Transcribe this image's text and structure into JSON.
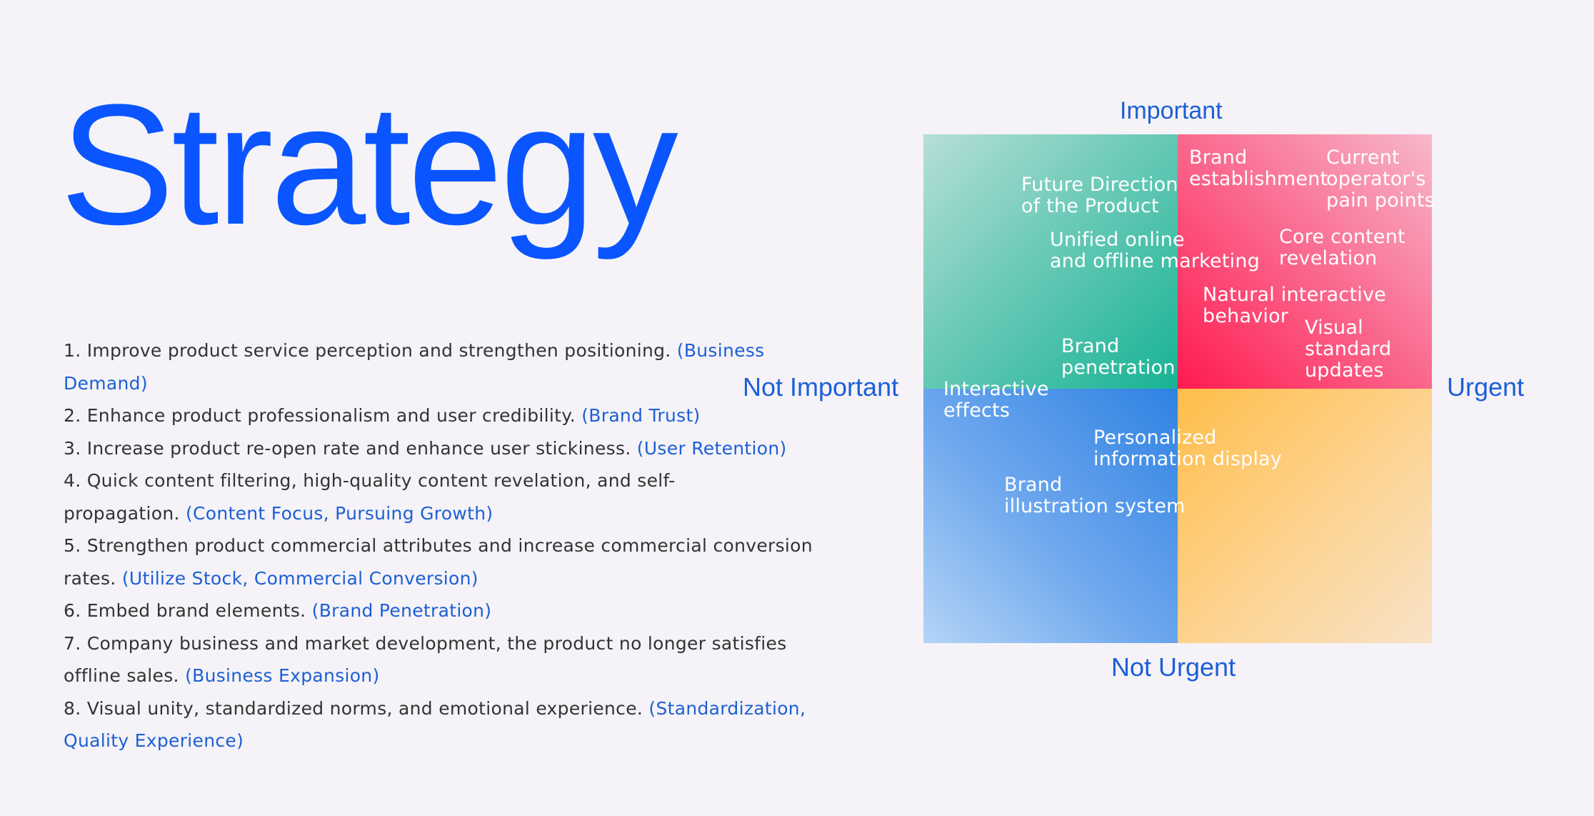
{
  "title": "Strategy",
  "list": [
    {
      "text": "1. Improve product service perception and strengthen positioning. ",
      "tag": "(Business Demand)"
    },
    {
      "text": "2. Enhance product professionalism and user credibility. ",
      "tag": "(Brand Trust)"
    },
    {
      "text": "3. Increase product re-open rate and enhance user stickiness. ",
      "tag": "(User Retention)"
    },
    {
      "text": "4. Quick content filtering, high-quality content revelation, and self-propagation. ",
      "tag": "(Content Focus, Pursuing Growth)"
    },
    {
      "text": "5. Strengthen product commercial attributes and increase commercial conversion rates. ",
      "tag": "(Utilize Stock, Commercial Conversion)"
    },
    {
      "text": "6. Embed brand elements. ",
      "tag": "(Brand Penetration)"
    },
    {
      "text": "7. Company business and market development, the product no longer satisfies offline sales. ",
      "tag": "(Business Expansion)"
    },
    {
      "text": "8. Visual unity, standardized norms, and emotional experience. ",
      "tag": "(Standardization, Quality Experience)"
    }
  ],
  "matrix": {
    "axes": {
      "top": "Important",
      "bottom": "Not Urgent",
      "left": "Not Important",
      "right": "Urgent"
    },
    "colors": {
      "important_not_urgent": "#17b394",
      "important_urgent": "#ff1a4f",
      "not_important_not_urgent": "#2f82e3",
      "not_important_urgent": "#ffbd4a"
    },
    "labels": {
      "future_direction": "Future Direction\nof the Product",
      "unified_marketing": "Unified online\nand offline marketing",
      "brand_penetration": "Brand\npenetration",
      "brand_establishment": "Brand\nestablishment",
      "current_pain_points": "Current\noperator's\npain points",
      "core_content": "Core content\nrevelation",
      "natural_interactive": "Natural interactive\nbehavior",
      "visual_standard": "Visual\nstandard\nupdates",
      "interactive_effects": "Interactive\neffects",
      "personalized_display": "Personalized\ninformation display",
      "brand_illustration": "Brand\nillustration system"
    }
  }
}
